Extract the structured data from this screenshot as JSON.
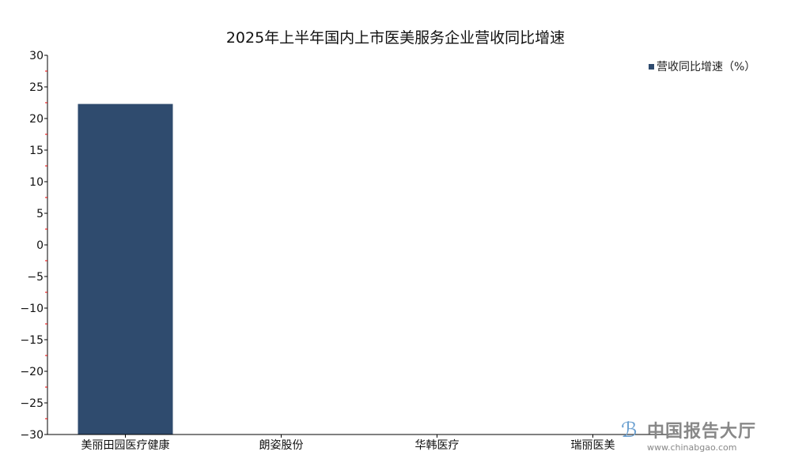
{
  "chart_data": {
    "type": "bar",
    "title": "2025年上半年国内上市医美服务企业营收同比增速",
    "categories": [
      "美丽田园医疗健康",
      "朗姿股份",
      "华韩医疗",
      "瑞丽医美"
    ],
    "series": [
      {
        "name": "营收同比增速（%）",
        "values": [
          22.3,
          null,
          null,
          null
        ],
        "color": "#2f4b6e"
      }
    ],
    "ylim": [
      -30,
      30
    ],
    "yticks": [
      30,
      25,
      20,
      15,
      10,
      5,
      0,
      -5,
      -10,
      -15,
      -20,
      -25,
      -30
    ],
    "grid": false,
    "legend": "top-right"
  },
  "watermark": {
    "name": "中国报告大厅",
    "url": "www.chinabgao.com"
  }
}
